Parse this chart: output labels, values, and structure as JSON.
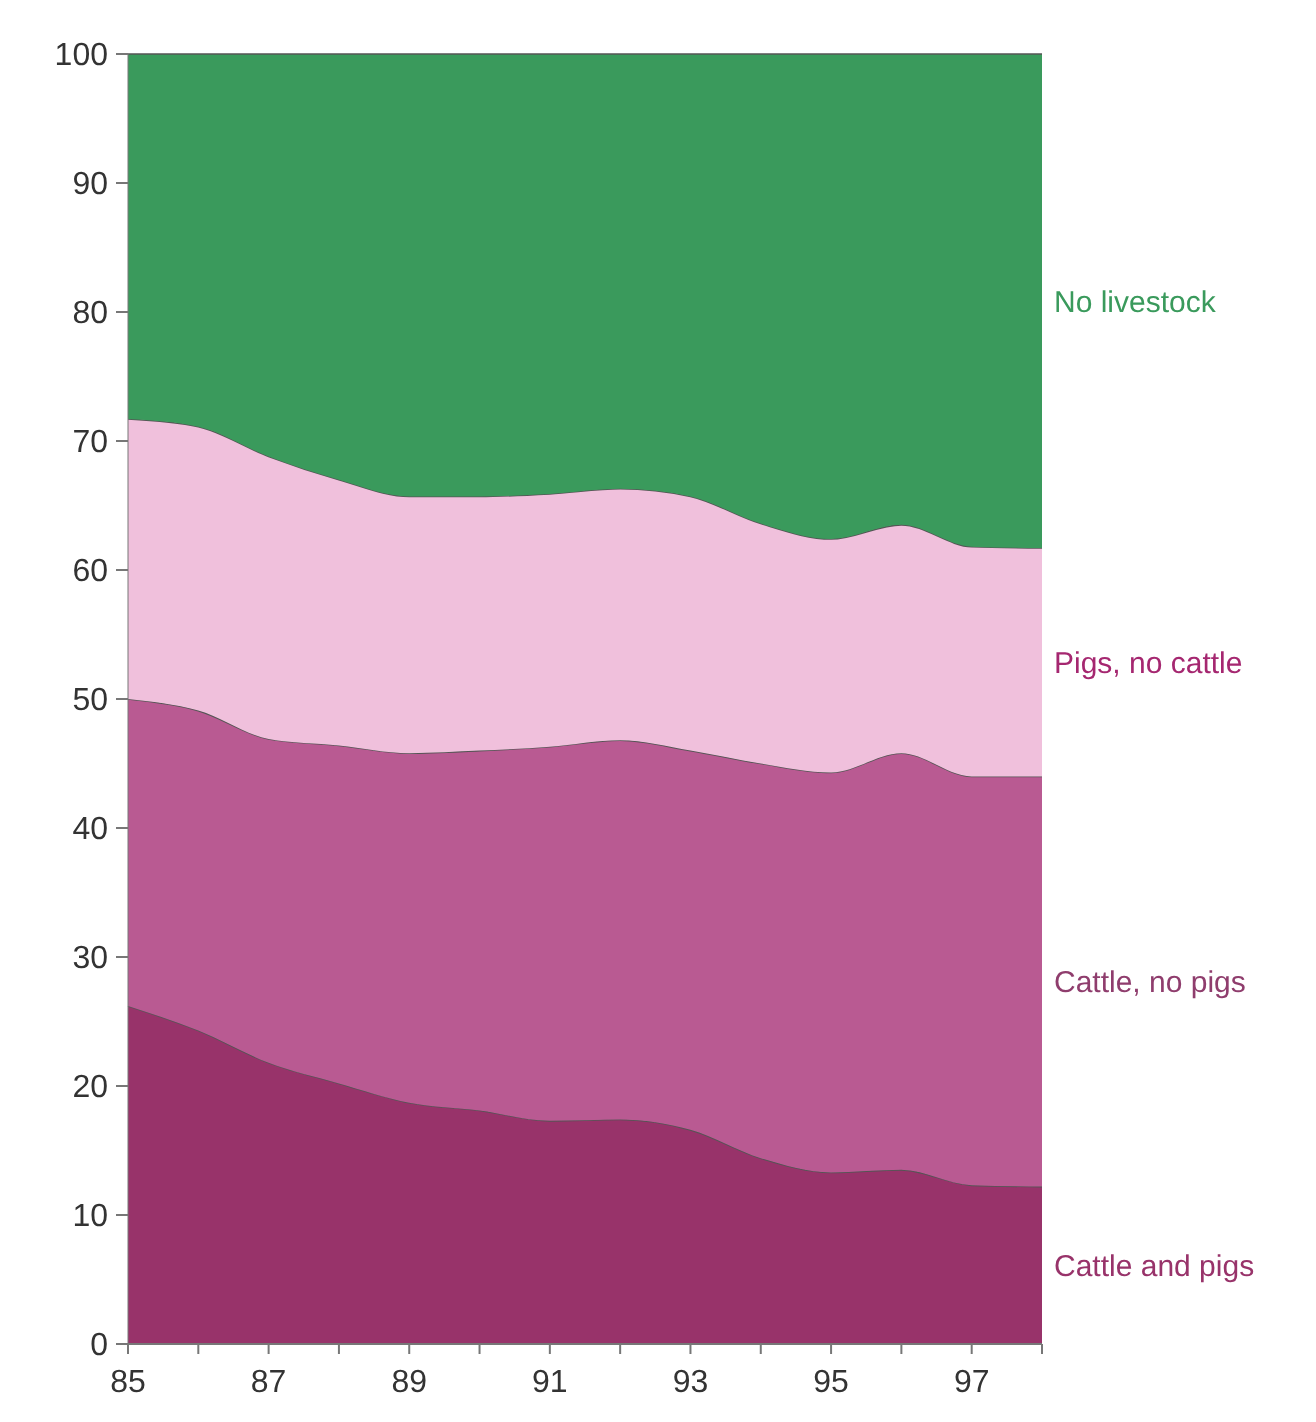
{
  "chart_data": {
    "type": "area",
    "stacked": true,
    "x": [
      85,
      86,
      87,
      88,
      89,
      90,
      91,
      92,
      93,
      94,
      95,
      96,
      97,
      98
    ],
    "series": [
      {
        "name": "Cattle and pigs",
        "color": "#98336a",
        "values": [
          26.2,
          24.3,
          21.8,
          20.2,
          18.7,
          18.1,
          17.3,
          17.4,
          16.6,
          14.4,
          13.3,
          13.5,
          12.3,
          12.2
        ]
      },
      {
        "name": "Cattle, no pigs",
        "color": "#b95a92",
        "values": [
          23.8,
          24.8,
          25.1,
          26.2,
          27.1,
          27.9,
          29.0,
          29.4,
          29.4,
          30.6,
          31.0,
          32.3,
          31.7,
          31.8
        ]
      },
      {
        "name": "Pigs, no cattle",
        "color": "#f0c0dc",
        "values": [
          21.7,
          22.0,
          21.9,
          20.6,
          19.9,
          19.7,
          19.6,
          19.5,
          19.7,
          18.6,
          18.1,
          17.7,
          17.8,
          17.7
        ]
      },
      {
        "name": "No livestock",
        "color": "#3a9a5c",
        "values": [
          28.3,
          28.9,
          31.2,
          33.0,
          34.3,
          34.3,
          34.1,
          33.7,
          34.3,
          36.4,
          37.6,
          36.5,
          38.2,
          38.3
        ]
      }
    ],
    "xlim": [
      85,
      98
    ],
    "xticks": [
      85,
      {
        "value": 86,
        "label": null
      },
      87,
      {
        "value": 88,
        "label": null
      },
      89,
      {
        "value": 90,
        "label": null
      },
      91,
      {
        "value": 92,
        "label": null
      },
      93,
      {
        "value": 94,
        "label": null
      },
      95,
      {
        "value": 96,
        "label": null
      },
      97,
      {
        "value": 98,
        "label": null
      }
    ],
    "ylim": [
      0,
      100
    ],
    "yticks": [
      0,
      10,
      20,
      30,
      40,
      50,
      60,
      70,
      80,
      90,
      100
    ],
    "grid": false,
    "legend": false
  }
}
